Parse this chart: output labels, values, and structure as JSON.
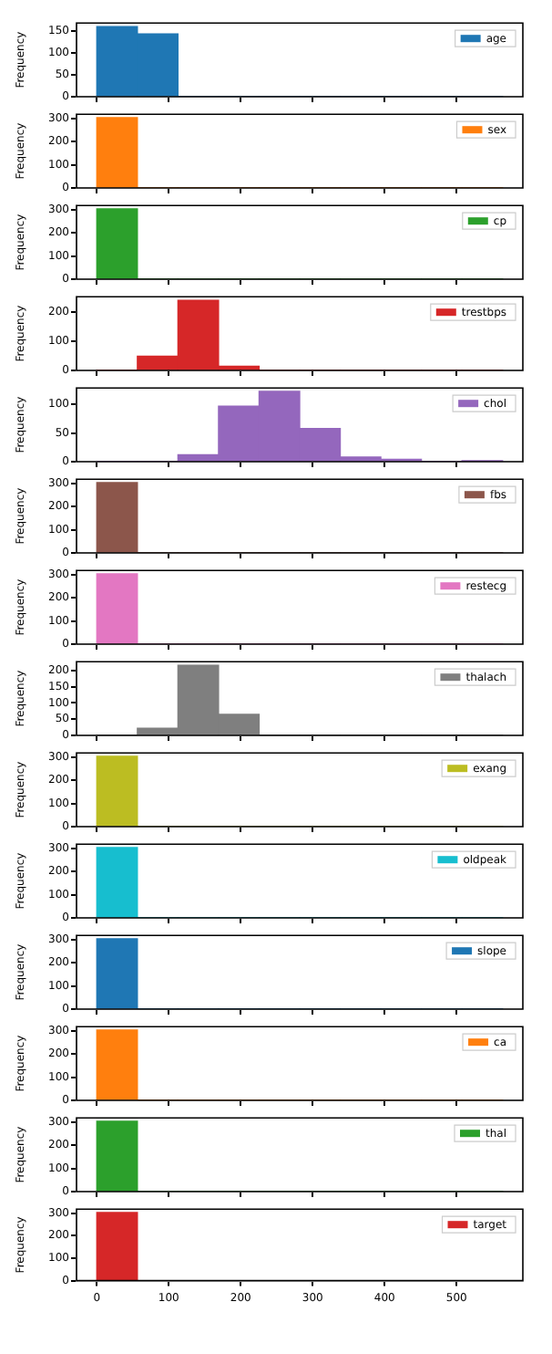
{
  "chart_data": [
    {
      "type": "histogram",
      "ylabel": "Frequency",
      "bins": [
        0,
        56.4,
        112.8,
        169.2,
        225.6,
        282,
        338.4,
        394.8,
        451.2,
        507.6,
        564
      ],
      "series": [
        {
          "name": "age",
          "color": "#1f77b4",
          "values": [
            160,
            143,
            0,
            0,
            0,
            0,
            0,
            0,
            0,
            0
          ]
        }
      ],
      "xlim": [
        -28.2,
        592.2
      ],
      "xticks": [
        0,
        100,
        200,
        300,
        400,
        500
      ],
      "ylim": [
        0,
        168
      ],
      "yticks": [
        0,
        50,
        100,
        150
      ],
      "legend": "top right",
      "tick_labels": "y"
    },
    {
      "type": "histogram",
      "ylabel": "Frequency",
      "bins": [
        0,
        56.4,
        112.8,
        169.2,
        225.6,
        282,
        338.4,
        394.8,
        451.2,
        507.6,
        564
      ],
      "series": [
        {
          "name": "sex",
          "color": "#ff7f0e",
          "values": [
            303,
            0,
            0,
            0,
            0,
            0,
            0,
            0,
            0,
            0
          ]
        }
      ],
      "xlim": [
        -28.2,
        592.2
      ],
      "xticks": [
        0,
        100,
        200,
        300,
        400,
        500
      ],
      "ylim": [
        0,
        318
      ],
      "yticks": [
        0,
        100,
        200,
        300
      ],
      "legend": "top right",
      "tick_labels": "y"
    },
    {
      "type": "histogram",
      "ylabel": "Frequency",
      "bins": [
        0,
        56.4,
        112.8,
        169.2,
        225.6,
        282,
        338.4,
        394.8,
        451.2,
        507.6,
        564
      ],
      "series": [
        {
          "name": "cp",
          "color": "#2ca02c",
          "values": [
            303,
            0,
            0,
            0,
            0,
            0,
            0,
            0,
            0,
            0
          ]
        }
      ],
      "xlim": [
        -28.2,
        592.2
      ],
      "xticks": [
        0,
        100,
        200,
        300,
        400,
        500
      ],
      "ylim": [
        0,
        318
      ],
      "yticks": [
        0,
        100,
        200,
        300
      ],
      "legend": "top right",
      "tick_labels": "y"
    },
    {
      "type": "histogram",
      "ylabel": "Frequency",
      "bins": [
        0,
        56.4,
        112.8,
        169.2,
        225.6,
        282,
        338.4,
        394.8,
        451.2,
        507.6,
        564
      ],
      "series": [
        {
          "name": "trestbps",
          "color": "#d62728",
          "values": [
            0,
            49,
            240,
            14,
            0,
            0,
            0,
            0,
            0,
            0
          ]
        }
      ],
      "xlim": [
        -28.2,
        592.2
      ],
      "xticks": [
        0,
        100,
        200,
        300,
        400,
        500
      ],
      "ylim": [
        0,
        252
      ],
      "yticks": [
        0,
        100,
        200
      ],
      "legend": "top right",
      "tick_labels": "y"
    },
    {
      "type": "histogram",
      "ylabel": "Frequency",
      "bins": [
        0,
        56.4,
        112.8,
        169.2,
        225.6,
        282,
        338.4,
        394.8,
        451.2,
        507.6,
        564
      ],
      "series": [
        {
          "name": "chol",
          "color": "#9467bd",
          "values": [
            0,
            0,
            12,
            97,
            123,
            58,
            8,
            4,
            0,
            1
          ]
        }
      ],
      "xlim": [
        -28.2,
        592.2
      ],
      "xticks": [
        0,
        100,
        200,
        300,
        400,
        500
      ],
      "ylim": [
        0,
        129
      ],
      "yticks": [
        0,
        50,
        100
      ],
      "legend": "top right",
      "tick_labels": "y"
    },
    {
      "type": "histogram",
      "ylabel": "Frequency",
      "bins": [
        0,
        56.4,
        112.8,
        169.2,
        225.6,
        282,
        338.4,
        394.8,
        451.2,
        507.6,
        564
      ],
      "series": [
        {
          "name": "fbs",
          "color": "#8c564b",
          "values": [
            303,
            0,
            0,
            0,
            0,
            0,
            0,
            0,
            0,
            0
          ]
        }
      ],
      "xlim": [
        -28.2,
        592.2
      ],
      "xticks": [
        0,
        100,
        200,
        300,
        400,
        500
      ],
      "ylim": [
        0,
        318
      ],
      "yticks": [
        0,
        100,
        200,
        300
      ],
      "legend": "top right",
      "tick_labels": "y"
    },
    {
      "type": "histogram",
      "ylabel": "Frequency",
      "bins": [
        0,
        56.4,
        112.8,
        169.2,
        225.6,
        282,
        338.4,
        394.8,
        451.2,
        507.6,
        564
      ],
      "series": [
        {
          "name": "restecg",
          "color": "#e377c2",
          "values": [
            303,
            0,
            0,
            0,
            0,
            0,
            0,
            0,
            0,
            0
          ]
        }
      ],
      "xlim": [
        -28.2,
        592.2
      ],
      "xticks": [
        0,
        100,
        200,
        300,
        400,
        500
      ],
      "ylim": [
        0,
        318
      ],
      "yticks": [
        0,
        100,
        200,
        300
      ],
      "legend": "top right",
      "tick_labels": "y"
    },
    {
      "type": "histogram",
      "ylabel": "Frequency",
      "bins": [
        0,
        56.4,
        112.8,
        169.2,
        225.6,
        282,
        338.4,
        394.8,
        451.2,
        507.6,
        564
      ],
      "series": [
        {
          "name": "thalach",
          "color": "#7f7f7f",
          "values": [
            0,
            22,
            216,
            65,
            0,
            0,
            0,
            0,
            0,
            0
          ]
        }
      ],
      "xlim": [
        -28.2,
        592.2
      ],
      "xticks": [
        0,
        100,
        200,
        300,
        400,
        500
      ],
      "ylim": [
        0,
        227
      ],
      "yticks": [
        0,
        50,
        100,
        150,
        200
      ],
      "legend": "top right",
      "tick_labels": "y"
    },
    {
      "type": "histogram",
      "ylabel": "Frequency",
      "bins": [
        0,
        56.4,
        112.8,
        169.2,
        225.6,
        282,
        338.4,
        394.8,
        451.2,
        507.6,
        564
      ],
      "series": [
        {
          "name": "exang",
          "color": "#bcbd22",
          "values": [
            303,
            0,
            0,
            0,
            0,
            0,
            0,
            0,
            0,
            0
          ]
        }
      ],
      "xlim": [
        -28.2,
        592.2
      ],
      "xticks": [
        0,
        100,
        200,
        300,
        400,
        500
      ],
      "ylim": [
        0,
        318
      ],
      "yticks": [
        0,
        100,
        200,
        300
      ],
      "legend": "top right",
      "tick_labels": "y"
    },
    {
      "type": "histogram",
      "ylabel": "Frequency",
      "bins": [
        0,
        56.4,
        112.8,
        169.2,
        225.6,
        282,
        338.4,
        394.8,
        451.2,
        507.6,
        564
      ],
      "series": [
        {
          "name": "oldpeak",
          "color": "#17becf",
          "values": [
            303,
            0,
            0,
            0,
            0,
            0,
            0,
            0,
            0,
            0
          ]
        }
      ],
      "xlim": [
        -28.2,
        592.2
      ],
      "xticks": [
        0,
        100,
        200,
        300,
        400,
        500
      ],
      "ylim": [
        0,
        318
      ],
      "yticks": [
        0,
        100,
        200,
        300
      ],
      "legend": "top right",
      "tick_labels": "y"
    },
    {
      "type": "histogram",
      "ylabel": "Frequency",
      "bins": [
        0,
        56.4,
        112.8,
        169.2,
        225.6,
        282,
        338.4,
        394.8,
        451.2,
        507.6,
        564
      ],
      "series": [
        {
          "name": "slope",
          "color": "#1f77b4",
          "values": [
            303,
            0,
            0,
            0,
            0,
            0,
            0,
            0,
            0,
            0
          ]
        }
      ],
      "xlim": [
        -28.2,
        592.2
      ],
      "xticks": [
        0,
        100,
        200,
        300,
        400,
        500
      ],
      "ylim": [
        0,
        318
      ],
      "yticks": [
        0,
        100,
        200,
        300
      ],
      "legend": "top right",
      "tick_labels": "y"
    },
    {
      "type": "histogram",
      "ylabel": "Frequency",
      "bins": [
        0,
        56.4,
        112.8,
        169.2,
        225.6,
        282,
        338.4,
        394.8,
        451.2,
        507.6,
        564
      ],
      "series": [
        {
          "name": "ca",
          "color": "#ff7f0e",
          "values": [
            303,
            0,
            0,
            0,
            0,
            0,
            0,
            0,
            0,
            0
          ]
        }
      ],
      "xlim": [
        -28.2,
        592.2
      ],
      "xticks": [
        0,
        100,
        200,
        300,
        400,
        500
      ],
      "ylim": [
        0,
        318
      ],
      "yticks": [
        0,
        100,
        200,
        300
      ],
      "legend": "top right",
      "tick_labels": "y"
    },
    {
      "type": "histogram",
      "ylabel": "Frequency",
      "bins": [
        0,
        56.4,
        112.8,
        169.2,
        225.6,
        282,
        338.4,
        394.8,
        451.2,
        507.6,
        564
      ],
      "series": [
        {
          "name": "thal",
          "color": "#2ca02c",
          "values": [
            303,
            0,
            0,
            0,
            0,
            0,
            0,
            0,
            0,
            0
          ]
        }
      ],
      "xlim": [
        -28.2,
        592.2
      ],
      "xticks": [
        0,
        100,
        200,
        300,
        400,
        500
      ],
      "ylim": [
        0,
        318
      ],
      "yticks": [
        0,
        100,
        200,
        300
      ],
      "legend": "top right",
      "tick_labels": "y"
    },
    {
      "type": "histogram",
      "ylabel": "Frequency",
      "bins": [
        0,
        56.4,
        112.8,
        169.2,
        225.6,
        282,
        338.4,
        394.8,
        451.2,
        507.6,
        564
      ],
      "series": [
        {
          "name": "target",
          "color": "#d62728",
          "values": [
            303,
            0,
            0,
            0,
            0,
            0,
            0,
            0,
            0,
            0
          ]
        }
      ],
      "xlim": [
        -28.2,
        592.2
      ],
      "xticks": [
        0,
        100,
        200,
        300,
        400,
        500
      ],
      "ylim": [
        0,
        318
      ],
      "yticks": [
        0,
        100,
        200,
        300
      ],
      "legend": "top right"
    }
  ]
}
